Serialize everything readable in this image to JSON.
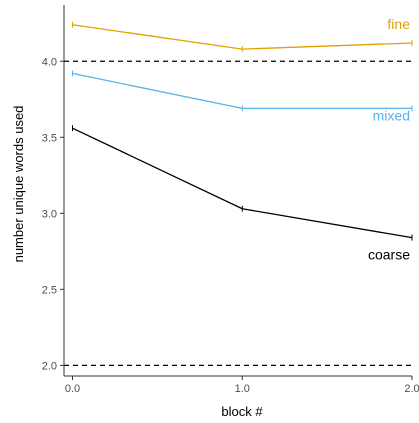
{
  "chart_data": {
    "type": "line",
    "title": "",
    "xlabel": "block #",
    "ylabel": "number unique words used",
    "xlim": [
      -0.05,
      2.0
    ],
    "ylim": [
      1.93,
      4.37
    ],
    "x_ticks": [
      0.0,
      1.0,
      2.0
    ],
    "x_tick_labels": [
      "0.0",
      "1.0",
      "2.0"
    ],
    "y_ticks": [
      2.0,
      2.5,
      3.0,
      3.5,
      4.0
    ],
    "y_tick_labels": [
      "2.0",
      "2.5",
      "3.0",
      "3.5",
      "4.0"
    ],
    "reference_lines": [
      2.0,
      4.0
    ],
    "grid": false,
    "legend": "direct labels at line ends",
    "series": [
      {
        "name": "fine",
        "color": "#E69F00",
        "x": [
          0,
          1,
          2
        ],
        "y": [
          4.24,
          4.08,
          4.12
        ]
      },
      {
        "name": "mixed",
        "color": "#56B4E9",
        "x": [
          0,
          1,
          2
        ],
        "y": [
          3.92,
          3.69,
          3.69
        ]
      },
      {
        "name": "coarse",
        "color": "#000000",
        "x": [
          0,
          1,
          2
        ],
        "y": [
          3.56,
          3.03,
          2.84
        ]
      }
    ]
  }
}
